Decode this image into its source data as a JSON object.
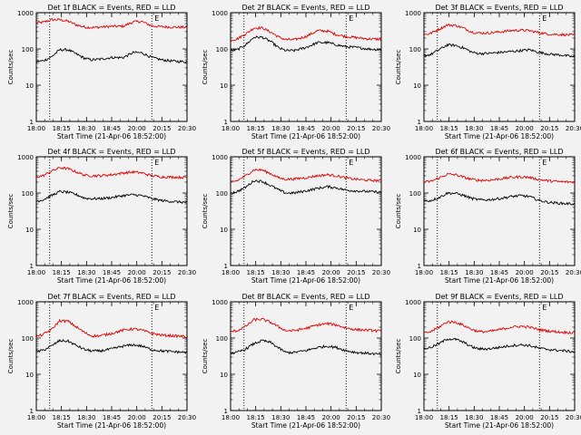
{
  "chart_data": {
    "type": "line",
    "grid": "3x3",
    "x_tick_labels": [
      "18:00",
      "18:15",
      "18:30",
      "18:45",
      "20:00",
      "20:15",
      "20:30"
    ],
    "x_tick_minutes": [
      0,
      15,
      30,
      45,
      60,
      75,
      90
    ],
    "xlim_minutes": [
      0,
      90
    ],
    "x_axis_label": "Start Time (21-Apr-06 18:52:00)",
    "y_axis_label": "Counts/sec",
    "y_scale": "log",
    "ylim": [
      1,
      1000
    ],
    "y_tick_labels": [
      "1",
      "10",
      "100",
      "1000"
    ],
    "y_tick_values": [
      1,
      10,
      100,
      1000
    ],
    "dotted_markers_minutes": [
      8,
      69
    ],
    "flag_label": "E",
    "series_names": [
      "Events",
      "LLD"
    ],
    "series_colors": {
      "Events": "#000000",
      "LLD": "#dd0000"
    },
    "knot_minutes": [
      0,
      4,
      9,
      14,
      19,
      24,
      29,
      33,
      38,
      45,
      52,
      58,
      63,
      69,
      75,
      82,
      90
    ],
    "panels": [
      {
        "title": "Det 1f BLACK = Events, RED = LLD",
        "events": [
          45,
          47,
          60,
          95,
          95,
          72,
          55,
          50,
          52,
          58,
          58,
          80,
          78,
          58,
          50,
          46,
          44
        ],
        "lld": [
          530,
          540,
          640,
          640,
          580,
          460,
          400,
          390,
          400,
          420,
          425,
          560,
          570,
          430,
          410,
          400,
          395
        ]
      },
      {
        "title": "Det 2f BLACK = Events, RED = LLD",
        "events": [
          90,
          95,
          130,
          210,
          210,
          160,
          105,
          90,
          90,
          110,
          150,
          150,
          130,
          115,
          110,
          100,
          95
        ],
        "lld": [
          175,
          190,
          260,
          380,
          380,
          290,
          210,
          180,
          180,
          220,
          320,
          310,
          250,
          220,
          205,
          190,
          185
        ]
      },
      {
        "title": "Det 3f BLACK = Events, RED = LLD",
        "events": [
          65,
          70,
          95,
          130,
          125,
          105,
          80,
          75,
          75,
          80,
          85,
          90,
          95,
          80,
          72,
          68,
          60
        ],
        "lld": [
          245,
          270,
          350,
          460,
          445,
          370,
          290,
          275,
          275,
          295,
          320,
          330,
          320,
          280,
          255,
          250,
          240
        ]
      },
      {
        "title": "Det 4f BLACK = Events, RED = LLD",
        "events": [
          60,
          65,
          85,
          110,
          105,
          90,
          72,
          70,
          70,
          75,
          85,
          90,
          85,
          70,
          62,
          58,
          55
        ],
        "lld": [
          280,
          300,
          400,
          500,
          470,
          380,
          310,
          300,
          300,
          320,
          360,
          380,
          360,
          300,
          280,
          275,
          270
        ]
      },
      {
        "title": "Det 5f BLACK = Events, RED = LLD",
        "events": [
          100,
          110,
          145,
          220,
          210,
          160,
          120,
          100,
          100,
          115,
          135,
          150,
          140,
          120,
          115,
          110,
          105
        ],
        "lld": [
          200,
          220,
          300,
          440,
          430,
          340,
          260,
          240,
          245,
          265,
          300,
          320,
          300,
          260,
          240,
          225,
          220
        ]
      },
      {
        "title": "Det 6f BLACK = Events, RED = LLD",
        "events": [
          60,
          62,
          75,
          100,
          98,
          85,
          70,
          65,
          65,
          70,
          80,
          85,
          80,
          62,
          55,
          52,
          50
        ],
        "lld": [
          200,
          210,
          260,
          330,
          320,
          270,
          235,
          225,
          225,
          245,
          270,
          280,
          270,
          235,
          215,
          205,
          200
        ]
      },
      {
        "title": "Det 7f BLACK = Events, RED = LLD",
        "events": [
          42,
          46,
          60,
          85,
          82,
          62,
          48,
          44,
          44,
          50,
          60,
          65,
          60,
          48,
          44,
          42,
          40
        ],
        "lld": [
          110,
          125,
          170,
          300,
          290,
          200,
          140,
          115,
          115,
          135,
          165,
          180,
          165,
          135,
          120,
          115,
          110
        ]
      },
      {
        "title": "Det 8f BLACK = Events, RED = LLD",
        "events": [
          38,
          40,
          50,
          70,
          85,
          75,
          52,
          40,
          40,
          45,
          55,
          60,
          55,
          45,
          40,
          38,
          35
        ],
        "lld": [
          150,
          160,
          210,
          320,
          330,
          270,
          200,
          160,
          160,
          185,
          230,
          250,
          230,
          190,
          170,
          165,
          155
        ]
      },
      {
        "title": "Det 9f BLACK = Events, RED = LLD",
        "events": [
          50,
          55,
          70,
          95,
          92,
          75,
          56,
          50,
          50,
          55,
          62,
          65,
          62,
          52,
          48,
          45,
          42
        ],
        "lld": [
          135,
          150,
          200,
          280,
          275,
          220,
          170,
          150,
          150,
          170,
          200,
          210,
          200,
          170,
          155,
          145,
          140
        ]
      }
    ]
  }
}
